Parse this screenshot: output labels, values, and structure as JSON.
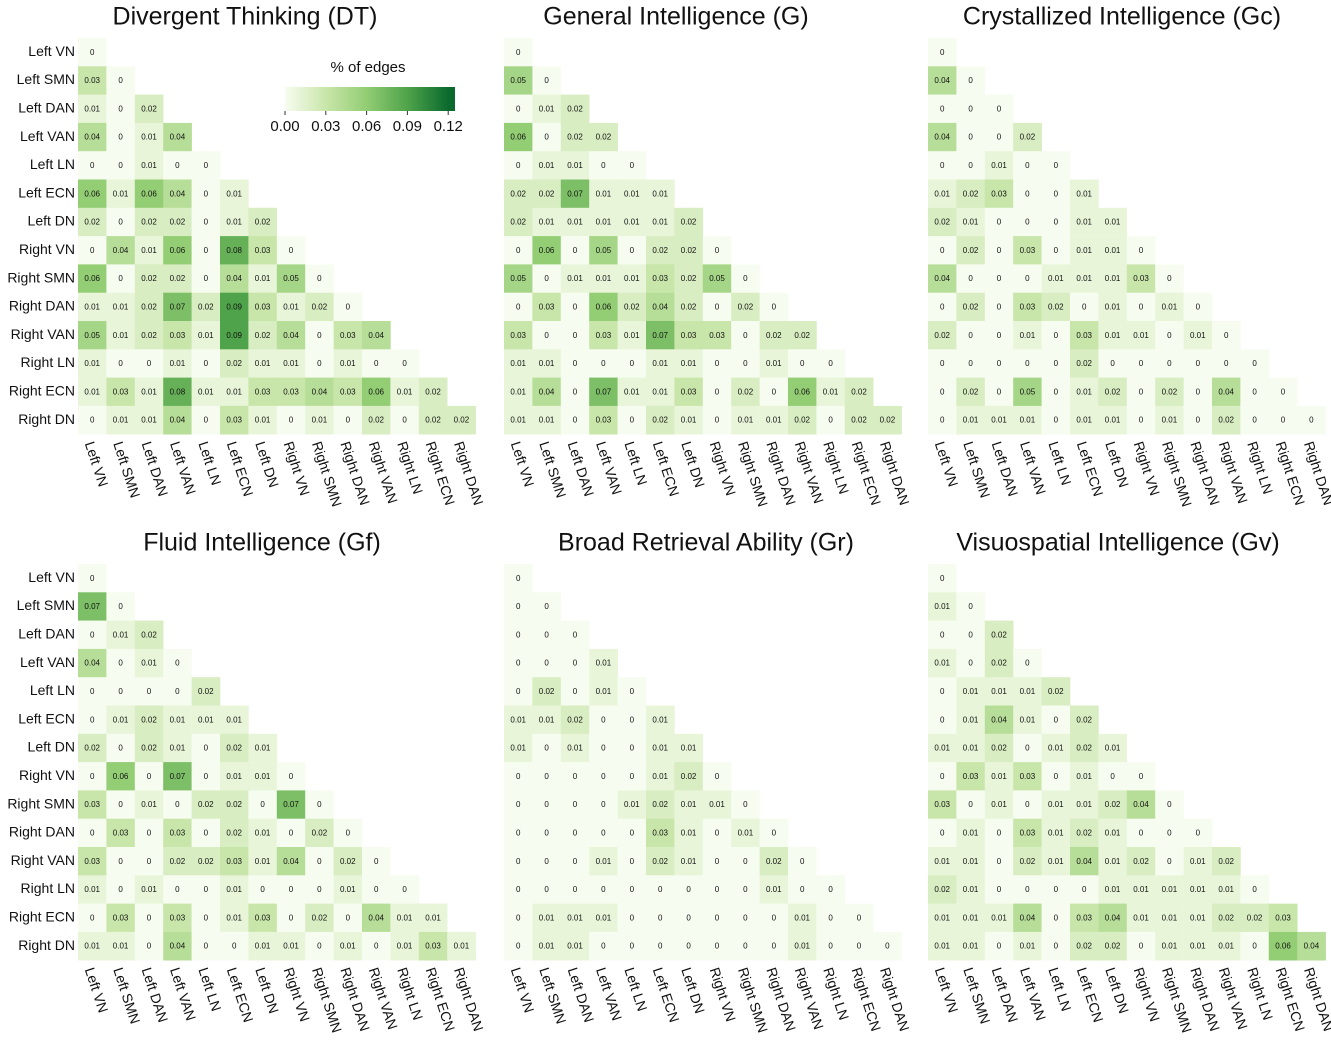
{
  "chart_data": [
    {
      "type": "heatmap",
      "title": "Divergent Thinking (DT)",
      "row_labels": [
        "Left VN",
        "Left SMN",
        "Left DAN",
        "Left VAN",
        "Left LN",
        "Left ECN",
        "Left DN",
        "Right VN",
        "Right SMN",
        "Right DAN",
        "Right VAN",
        "Right  LN",
        "Right ECN",
        "Right DN"
      ],
      "col_labels": [
        "Left VN",
        "Left SMN",
        "Left DAN",
        "Left VAN",
        "Left LN",
        "Left ECN",
        "Left DN",
        "Right VN",
        "Right SMN",
        "Right DAN",
        "Right VAN",
        "Right  LN",
        "Right ECN",
        "Right DAN"
      ],
      "values": [
        [
          0
        ],
        [
          0.03,
          0
        ],
        [
          0.01,
          0,
          0.02
        ],
        [
          0.04,
          0,
          0.01,
          0.04
        ],
        [
          0,
          0,
          0.01,
          0,
          0
        ],
        [
          0.06,
          0.01,
          0.06,
          0.04,
          0,
          0.01
        ],
        [
          0.02,
          0,
          0.02,
          0.02,
          0,
          0.01,
          0.02
        ],
        [
          0,
          0.04,
          0.01,
          0.06,
          0,
          0.08,
          0.03,
          0
        ],
        [
          0.06,
          0,
          0.02,
          0.02,
          0,
          0.04,
          0.01,
          0.05,
          0
        ],
        [
          0.01,
          0.01,
          0.02,
          0.07,
          0.02,
          0.09,
          0.03,
          0.01,
          0.02,
          0
        ],
        [
          0.05,
          0.01,
          0.02,
          0.03,
          0.01,
          0.09,
          0.02,
          0.04,
          0,
          0.03,
          0.04
        ],
        [
          0.01,
          0,
          0,
          0.01,
          0,
          0.02,
          0.01,
          0.01,
          0,
          0.01,
          0,
          0
        ],
        [
          0.01,
          0.03,
          0.01,
          0.08,
          0.01,
          0.01,
          0.03,
          0.03,
          0.04,
          0.03,
          0.06,
          0.01,
          0.02
        ],
        [
          0,
          0.01,
          0.01,
          0.04,
          0,
          0.03,
          0.01,
          0,
          0.01,
          0,
          0.02,
          0,
          0.02,
          0.02
        ]
      ],
      "colorbar": {
        "title": "% of edges",
        "lim": [
          0,
          0.125
        ],
        "ticks": [
          {
            "value": 0,
            "label": "0.00"
          },
          {
            "value": 0.03,
            "label": "0.03"
          },
          {
            "value": 0.06,
            "label": "0.06"
          },
          {
            "value": 0.09,
            "label": "0.09"
          },
          {
            "value": 0.12,
            "label": "0.12"
          }
        ],
        "colors": [
          "#f7fcf0",
          "#c9e6aa",
          "#93cd74",
          "#4fa34a",
          "#0b6b2e"
        ]
      }
    },
    {
      "type": "heatmap",
      "title": "General Intelligence (G)",
      "col_labels": [
        "Left VN",
        "Left SMN",
        "Left DAN",
        "Left VAN",
        "Left LN",
        "Left ECN",
        "Left DN",
        "Right VN",
        "Right SMN",
        "Right DAN",
        "Right VAN",
        "Right  LN",
        "Right ECN",
        "Right DAN"
      ],
      "values": [
        [
          0
        ],
        [
          0.05,
          0
        ],
        [
          0,
          0.01,
          0.02
        ],
        [
          0.06,
          0,
          0.02,
          0.02
        ],
        [
          0,
          0.01,
          0.01,
          0,
          0
        ],
        [
          0.02,
          0.02,
          0.07,
          0.01,
          0.01,
          0.01
        ],
        [
          0.02,
          0.01,
          0.01,
          0.01,
          0.01,
          0.01,
          0.02
        ],
        [
          0,
          0.06,
          0,
          0.05,
          0,
          0.02,
          0.02,
          0
        ],
        [
          0.05,
          0,
          0.01,
          0.01,
          0.01,
          0.03,
          0.02,
          0.05,
          0
        ],
        [
          0,
          0.03,
          0,
          0.06,
          0.02,
          0.04,
          0.02,
          0,
          0.02,
          0
        ],
        [
          0.03,
          0,
          0,
          0.03,
          0.01,
          0.07,
          0.03,
          0.03,
          0,
          0.02,
          0.02
        ],
        [
          0.01,
          0.01,
          0,
          0,
          0,
          0.01,
          0.01,
          0,
          0,
          0.01,
          0,
          0
        ],
        [
          0.01,
          0.04,
          0,
          0.07,
          0.01,
          0.01,
          0.03,
          0,
          0.02,
          0,
          0.06,
          0.01,
          0.02
        ],
        [
          0.01,
          0.01,
          0,
          0.03,
          0,
          0.02,
          0.01,
          0,
          0.01,
          0.01,
          0.02,
          0,
          0.02,
          0.02
        ]
      ]
    },
    {
      "type": "heatmap",
      "title": "Crystallized Intelligence (Gc)",
      "col_labels": [
        "Left VN",
        "Left SMN",
        "Left DAN",
        "Left VAN",
        "Left LN",
        "Left ECN",
        "Left DN",
        "Right VN",
        "Right SMN",
        "Right DAN",
        "Right VAN",
        "Right  LN",
        "Right ECN",
        "Right DAN"
      ],
      "values": [
        [
          0
        ],
        [
          0.04,
          0
        ],
        [
          0,
          0,
          0
        ],
        [
          0.04,
          0,
          0,
          0.02
        ],
        [
          0,
          0,
          0.01,
          0,
          0
        ],
        [
          0.01,
          0.02,
          0.03,
          0,
          0,
          0.01
        ],
        [
          0.02,
          0.01,
          0,
          0,
          0,
          0.01,
          0.01
        ],
        [
          0,
          0.02,
          0,
          0.03,
          0,
          0.01,
          0.01,
          0
        ],
        [
          0.04,
          0,
          0,
          0,
          0.01,
          0.01,
          0.01,
          0.03,
          0
        ],
        [
          0,
          0.02,
          0,
          0.03,
          0.02,
          0,
          0.01,
          0,
          0.01,
          0
        ],
        [
          0.02,
          0,
          0,
          0.01,
          0,
          0.03,
          0.01,
          0.01,
          0,
          0.01,
          0
        ],
        [
          0,
          0,
          0,
          0,
          0,
          0.02,
          0,
          0,
          0,
          0,
          0,
          0
        ],
        [
          0,
          0.02,
          0,
          0.05,
          0,
          0.01,
          0.02,
          0,
          0.02,
          0,
          0.04,
          0,
          0
        ],
        [
          0,
          0.01,
          0.01,
          0.01,
          0,
          0.01,
          0.01,
          0,
          0.01,
          0,
          0.02,
          0,
          0,
          0
        ]
      ]
    },
    {
      "type": "heatmap",
      "title": "Fluid Intelligence (Gf)",
      "row_labels": [
        "Left VN",
        "Left SMN",
        "Left DAN",
        "Left VAN",
        "Left LN",
        "Left ECN",
        "Left DN",
        "Right VN",
        "Right SMN",
        "Right DAN",
        "Right VAN",
        "Right  LN",
        "Right ECN",
        "Right DN"
      ],
      "col_labels": [
        "Left VN",
        "Left SMN",
        "Left DAN",
        "Left VAN",
        "Left LN",
        "Left ECN",
        "Left DN",
        "Right VN",
        "Right SMN",
        "Right DAN",
        "Right VAN",
        "Right  LN",
        "Right ECN",
        "Right DAN"
      ],
      "values": [
        [
          0
        ],
        [
          0.07,
          0
        ],
        [
          0,
          0.01,
          0.02
        ],
        [
          0.04,
          0,
          0.01,
          0
        ],
        [
          0,
          0,
          0,
          0,
          0.02
        ],
        [
          0,
          0.01,
          0.02,
          0.01,
          0.01,
          0.01
        ],
        [
          0.02,
          0,
          0.02,
          0.01,
          0,
          0.02,
          0.01
        ],
        [
          0,
          0.06,
          0,
          0.07,
          0,
          0.01,
          0.01,
          0
        ],
        [
          0.03,
          0,
          0.01,
          0,
          0.02,
          0.02,
          0,
          0.07,
          0
        ],
        [
          0,
          0.03,
          0,
          0.03,
          0,
          0.02,
          0.01,
          0,
          0.02,
          0
        ],
        [
          0.03,
          0,
          0,
          0.02,
          0.02,
          0.03,
          0.01,
          0.04,
          0,
          0.02,
          0
        ],
        [
          0.01,
          0,
          0.01,
          0,
          0,
          0.01,
          0,
          0,
          0,
          0.01,
          0,
          0
        ],
        [
          0,
          0.03,
          0,
          0.03,
          0,
          0.01,
          0.03,
          0,
          0.02,
          0,
          0.04,
          0.01,
          0.01
        ],
        [
          0.01,
          0.01,
          0,
          0.04,
          0,
          0,
          0.01,
          0.01,
          0,
          0.01,
          0,
          0.01,
          0.03,
          0.01
        ]
      ]
    },
    {
      "type": "heatmap",
      "title": "Broad Retrieval Ability (Gr)",
      "col_labels": [
        "Left VN",
        "Left SMN",
        "Left DAN",
        "Left VAN",
        "Left LN",
        "Left ECN",
        "Left DN",
        "Right VN",
        "Right SMN",
        "Right DAN",
        "Right VAN",
        "Right  LN",
        "Right ECN",
        "Right DAN"
      ],
      "values": [
        [
          0
        ],
        [
          0,
          0
        ],
        [
          0,
          0,
          0
        ],
        [
          0,
          0,
          0,
          0.01
        ],
        [
          0,
          0.02,
          0,
          0.01,
          0
        ],
        [
          0.01,
          0.01,
          0.02,
          0,
          0,
          0.01
        ],
        [
          0.01,
          0,
          0.01,
          0,
          0,
          0.01,
          0.01
        ],
        [
          0,
          0,
          0,
          0,
          0,
          0.01,
          0.02,
          0
        ],
        [
          0,
          0,
          0,
          0,
          0.01,
          0.02,
          0.01,
          0.01,
          0
        ],
        [
          0,
          0,
          0,
          0,
          0,
          0.03,
          0.01,
          0,
          0.01,
          0
        ],
        [
          0,
          0,
          0,
          0.01,
          0,
          0.02,
          0.01,
          0,
          0,
          0.02,
          0
        ],
        [
          0,
          0,
          0,
          0,
          0,
          0,
          0,
          0,
          0,
          0.01,
          0,
          0
        ],
        [
          0,
          0.01,
          0.01,
          0.01,
          0,
          0,
          0,
          0,
          0,
          0,
          0.01,
          0,
          0
        ],
        [
          0,
          0.01,
          0.01,
          0,
          0,
          0,
          0,
          0,
          0,
          0,
          0.01,
          0,
          0,
          0
        ]
      ]
    },
    {
      "type": "heatmap",
      "title": "Visuospatial Intelligence (Gv)",
      "col_labels": [
        "Left VN",
        "Left SMN",
        "Left DAN",
        "Left VAN",
        "Left LN",
        "Left ECN",
        "Left DN",
        "Right VN",
        "Right SMN",
        "Right DAN",
        "Right VAN",
        "Right  LN",
        "Right ECN",
        "Right DAN"
      ],
      "values": [
        [
          0
        ],
        [
          0.01,
          0
        ],
        [
          0,
          0,
          0.02
        ],
        [
          0.01,
          0,
          0.02,
          0
        ],
        [
          0,
          0.01,
          0.01,
          0.01,
          0.02
        ],
        [
          0,
          0.01,
          0.04,
          0.01,
          0,
          0.02
        ],
        [
          0.01,
          0.01,
          0.02,
          0,
          0.01,
          0.02,
          0.01
        ],
        [
          0,
          0.03,
          0.01,
          0.03,
          0,
          0.01,
          0,
          0
        ],
        [
          0.03,
          0,
          0.01,
          0,
          0.01,
          0.01,
          0.02,
          0.04,
          0
        ],
        [
          0,
          0.01,
          0,
          0.03,
          0.01,
          0.02,
          0.01,
          0,
          0,
          0
        ],
        [
          0.01,
          0.01,
          0,
          0.02,
          0.01,
          0.04,
          0.01,
          0.02,
          0,
          0.01,
          0.02
        ],
        [
          0.02,
          0.01,
          0,
          0,
          0,
          0,
          0.01,
          0.01,
          0.01,
          0.01,
          0.01,
          0
        ],
        [
          0.01,
          0.01,
          0.01,
          0.04,
          0,
          0.03,
          0.04,
          0.01,
          0.01,
          0.01,
          0.02,
          0.02,
          0.03
        ],
        [
          0.01,
          0.01,
          0,
          0.01,
          0,
          0.02,
          0.02,
          0,
          0.01,
          0.01,
          0.01,
          0,
          0.06,
          0.04
        ]
      ]
    }
  ]
}
